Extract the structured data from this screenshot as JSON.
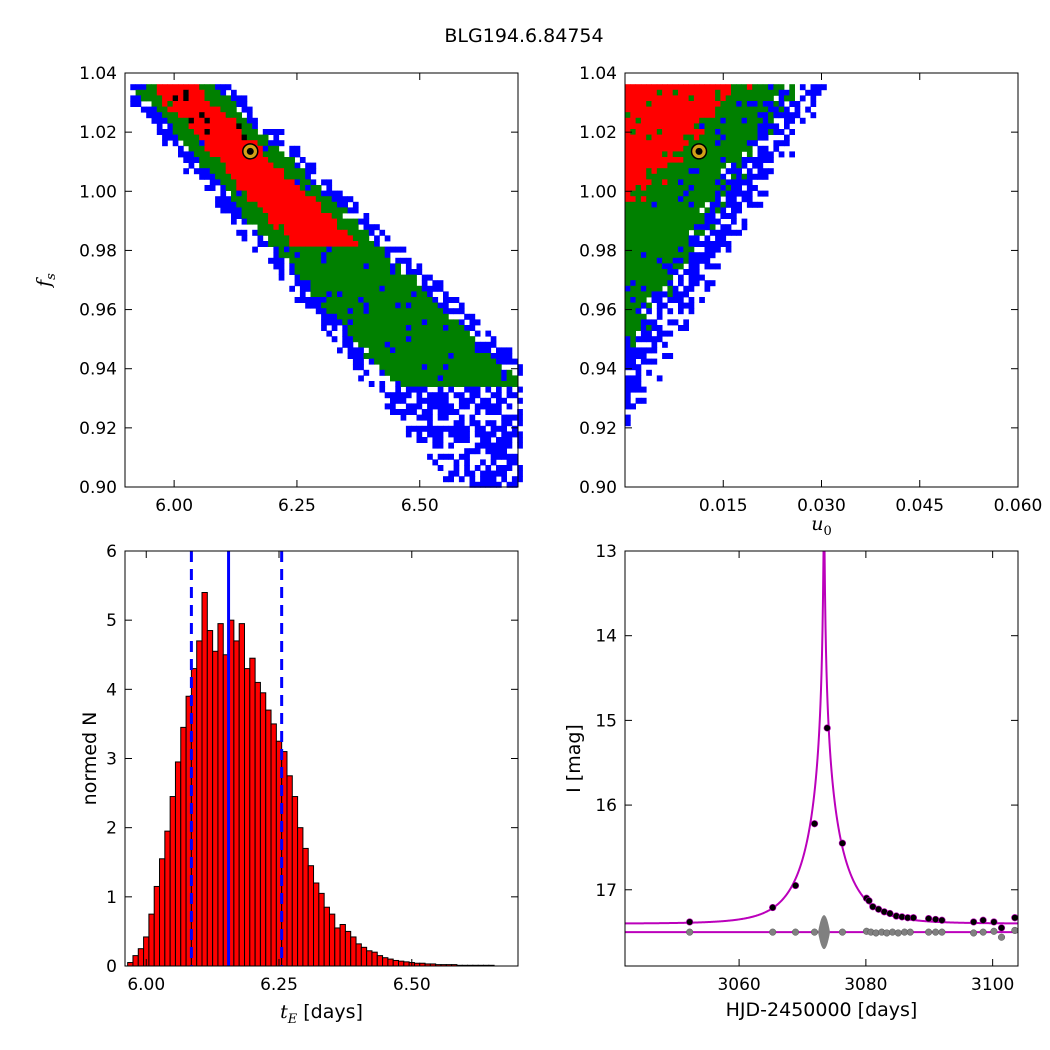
{
  "figure_title": "BLG194.6.84754",
  "chart_data": [
    {
      "type": "heatmap",
      "panel": "top-left",
      "xlabel": "",
      "ylabel": "f_s",
      "xlim": [
        5.9,
        6.7
      ],
      "ylim": [
        0.9,
        1.04
      ],
      "xticks": [
        "6.00",
        "6.25",
        "6.50"
      ],
      "yticks": [
        "0.90",
        "0.92",
        "0.94",
        "0.96",
        "0.98",
        "1.00",
        "1.02",
        "1.04"
      ],
      "levels": [
        {
          "color": "#0000ff",
          "name": ""
        },
        {
          "color": "#008000",
          "name": ""
        },
        {
          "color": "#ff0000",
          "name": ""
        },
        {
          "color": "#000000",
          "name": ""
        }
      ],
      "best_fit": {
        "x": 6.155,
        "y": 1.0135
      }
    },
    {
      "type": "heatmap",
      "panel": "top-right",
      "xlabel": "u_0",
      "ylabel": "",
      "xlim": [
        0.0,
        0.06
      ],
      "ylim": [
        0.9,
        1.04
      ],
      "xticks": [
        "0.015",
        "0.030",
        "0.045",
        "0.060"
      ],
      "yticks": [
        "0.90",
        "0.92",
        "0.94",
        "0.96",
        "0.98",
        "1.00",
        "1.02",
        "1.04"
      ],
      "levels": [
        {
          "color": "#0000ff",
          "name": ""
        },
        {
          "color": "#008000",
          "name": ""
        },
        {
          "color": "#ff0000",
          "name": ""
        },
        {
          "color": "#000000",
          "name": ""
        }
      ],
      "best_fit": {
        "x": 0.0113,
        "y": 1.0135
      }
    },
    {
      "type": "bar",
      "panel": "bottom-left",
      "xlabel": "t_E [days]",
      "ylabel": "normed N",
      "xlim": [
        5.96,
        6.7
      ],
      "ylim": [
        0,
        6
      ],
      "xticks": [
        "6.00",
        "6.25",
        "6.50"
      ],
      "yticks": [
        "0",
        "1",
        "2",
        "3",
        "4",
        "5",
        "6"
      ],
      "bin_start": 5.965,
      "bin_width": 0.01,
      "values": [
        0.05,
        0.15,
        0.25,
        0.42,
        0.75,
        1.15,
        1.55,
        1.95,
        2.45,
        2.95,
        3.45,
        3.9,
        4.3,
        4.7,
        5.4,
        4.85,
        4.55,
        4.95,
        4.5,
        5.0,
        4.7,
        4.95,
        4.3,
        4.45,
        4.1,
        3.95,
        3.7,
        3.5,
        3.25,
        3.1,
        2.75,
        2.45,
        2.0,
        1.7,
        1.45,
        1.2,
        1.05,
        0.85,
        0.75,
        0.55,
        0.6,
        0.5,
        0.42,
        0.32,
        0.27,
        0.22,
        0.2,
        0.15,
        0.12,
        0.1,
        0.08,
        0.07,
        0.06,
        0.05,
        0.04,
        0.04,
        0.03,
        0.03,
        0.02,
        0.02,
        0.02,
        0.02,
        0.01,
        0.01,
        0.01,
        0.01,
        0.01,
        0.01,
        0.01,
        0.0,
        0.0,
        0.0,
        0.0
      ],
      "bar_color": "#ff0000",
      "vlines": [
        {
          "x": 6.085,
          "style": "dashed",
          "color": "#0000ff"
        },
        {
          "x": 6.155,
          "style": "solid",
          "color": "#0000ff"
        },
        {
          "x": 6.255,
          "style": "dashed",
          "color": "#0000ff"
        }
      ]
    },
    {
      "type": "line",
      "panel": "bottom-right",
      "xlabel": "HJD-2450000 [days]",
      "ylabel": "I [mag]",
      "xlim": [
        3042,
        3104
      ],
      "ylim": [
        17.9,
        13.0
      ],
      "y_inverted": true,
      "xticks": [
        "3060",
        "3080",
        "3100"
      ],
      "yticks": [
        "13",
        "14",
        "15",
        "16",
        "17"
      ],
      "model": {
        "t0": 3073.4,
        "tE": 6.155,
        "u0": 0.0113,
        "baseline": 17.4,
        "color": "#bb00bb"
      },
      "data_points": [
        {
          "x": 3052.2,
          "y": 17.38
        },
        {
          "x": 3065.3,
          "y": 17.21
        },
        {
          "x": 3068.9,
          "y": 16.95
        },
        {
          "x": 3071.9,
          "y": 16.22
        },
        {
          "x": 3073.9,
          "y": 15.09
        },
        {
          "x": 3076.3,
          "y": 16.45
        },
        {
          "x": 3080.1,
          "y": 17.1
        },
        {
          "x": 3080.5,
          "y": 17.13
        },
        {
          "x": 3081.1,
          "y": 17.2
        },
        {
          "x": 3082.0,
          "y": 17.23
        },
        {
          "x": 3082.9,
          "y": 17.26
        },
        {
          "x": 3083.8,
          "y": 17.28
        },
        {
          "x": 3084.8,
          "y": 17.31
        },
        {
          "x": 3085.7,
          "y": 17.32
        },
        {
          "x": 3086.6,
          "y": 17.33
        },
        {
          "x": 3087.5,
          "y": 17.33
        },
        {
          "x": 3089.9,
          "y": 17.34
        },
        {
          "x": 3091.0,
          "y": 17.35
        },
        {
          "x": 3092.0,
          "y": 17.36
        },
        {
          "x": 3097.0,
          "y": 17.38
        },
        {
          "x": 3098.5,
          "y": 17.36
        },
        {
          "x": 3100.2,
          "y": 17.38
        },
        {
          "x": 3101.4,
          "y": 17.45
        },
        {
          "x": 3103.5,
          "y": 17.33
        }
      ],
      "residual_points": [
        {
          "x": 3052.2,
          "y": 17.5
        },
        {
          "x": 3065.3,
          "y": 17.5
        },
        {
          "x": 3068.9,
          "y": 17.5
        },
        {
          "x": 3071.9,
          "y": 17.5
        },
        {
          "x": 3076.3,
          "y": 17.5
        },
        {
          "x": 3080.1,
          "y": 17.49
        },
        {
          "x": 3080.8,
          "y": 17.5
        },
        {
          "x": 3081.6,
          "y": 17.51
        },
        {
          "x": 3082.5,
          "y": 17.5
        },
        {
          "x": 3083.3,
          "y": 17.51
        },
        {
          "x": 3084.2,
          "y": 17.5
        },
        {
          "x": 3085.1,
          "y": 17.51
        },
        {
          "x": 3086.1,
          "y": 17.5
        },
        {
          "x": 3087.0,
          "y": 17.5
        },
        {
          "x": 3089.9,
          "y": 17.5
        },
        {
          "x": 3091.0,
          "y": 17.5
        },
        {
          "x": 3092.0,
          "y": 17.5
        },
        {
          "x": 3097.0,
          "y": 17.51
        },
        {
          "x": 3098.5,
          "y": 17.5
        },
        {
          "x": 3100.2,
          "y": 17.49
        },
        {
          "x": 3101.4,
          "y": 17.56
        },
        {
          "x": 3103.5,
          "y": 17.48
        }
      ],
      "point_color": "#000000",
      "residual_color": "#808080"
    }
  ]
}
